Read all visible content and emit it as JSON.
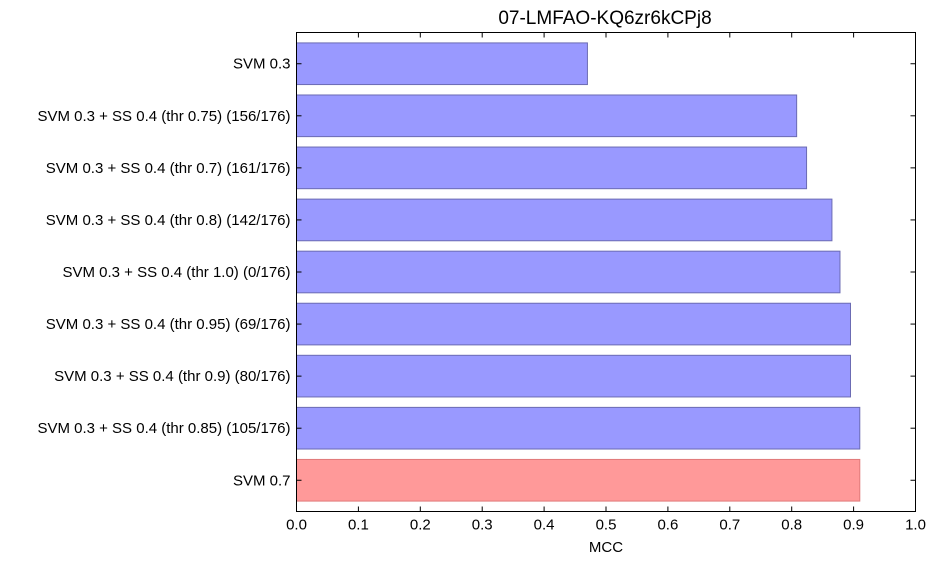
{
  "chart_data": {
    "type": "bar",
    "orientation": "horizontal",
    "title": "07-LMFAO-KQ6zr6kCPj8",
    "xlabel": "MCC",
    "ylabel": "",
    "xlim": [
      0.0,
      1.0
    ],
    "xticks": [
      "0.0",
      "0.1",
      "0.2",
      "0.3",
      "0.4",
      "0.5",
      "0.6",
      "0.7",
      "0.8",
      "0.9",
      "1.0"
    ],
    "grid": false,
    "categories": [
      "SVM 0.3",
      "SVM 0.3 + SS 0.4 (thr 0.75) (156/176)",
      "SVM 0.3 + SS 0.4 (thr 0.7) (161/176)",
      "SVM 0.3 + SS 0.4 (thr 0.8) (142/176)",
      "SVM 0.3 + SS 0.4 (thr 1.0) (0/176)",
      "SVM 0.3 + SS 0.4 (thr 0.95) (69/176)",
      "SVM 0.3 + SS 0.4 (thr 0.9) (80/176)",
      "SVM 0.3 + SS 0.4 (thr 0.85) (105/176)",
      "SVM 0.7"
    ],
    "values": [
      0.47,
      0.808,
      0.824,
      0.865,
      0.878,
      0.895,
      0.895,
      0.91,
      0.91
    ],
    "colors": [
      "#9999ff",
      "#9999ff",
      "#9999ff",
      "#9999ff",
      "#9999ff",
      "#9999ff",
      "#9999ff",
      "#9999ff",
      "#ff9999"
    ],
    "edge_colors": [
      "#6b6bb3",
      "#6b6bb3",
      "#6b6bb3",
      "#6b6bb3",
      "#6b6bb3",
      "#6b6bb3",
      "#6b6bb3",
      "#6b6bb3",
      "#e07a7a"
    ]
  }
}
